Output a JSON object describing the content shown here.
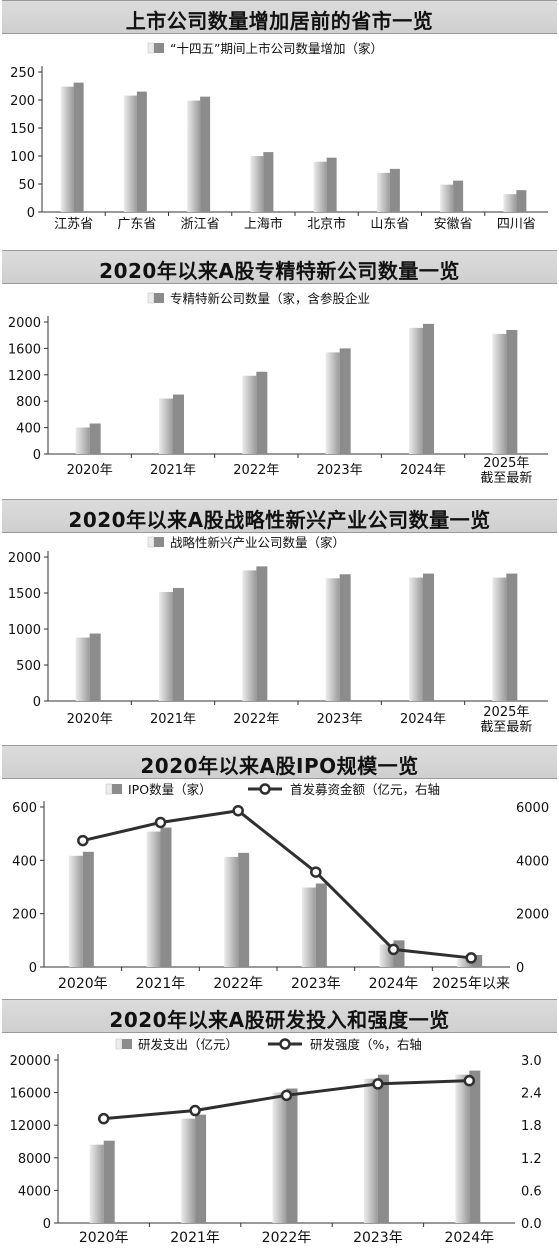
{
  "colors": {
    "bar_dark": "#8c8c8c",
    "bar_light": "#ececec",
    "line": "#2f2f2f",
    "title_bg": "#d6d6d6"
  },
  "chart_data": [
    {
      "type": "bar",
      "title": "上市公司数量增加居前的省市一览",
      "categories": [
        "江苏省",
        "广东省",
        "浙江省",
        "上海市",
        "北京市",
        "山东省",
        "安徽省",
        "四川省"
      ],
      "series": [
        {
          "name": "“十四五”期间上市公司数量增加（家）",
          "values": [
            231,
            215,
            206,
            107,
            97,
            77,
            56,
            39
          ]
        }
      ],
      "ylim": [
        0,
        250
      ],
      "yticks": [
        0,
        50,
        100,
        150,
        200,
        250
      ],
      "legend": "top-center"
    },
    {
      "type": "bar",
      "title": "2020年以来A股专精特新公司数量一览",
      "categories": [
        "2020年",
        "2021年",
        "2022年",
        "2023年",
        "2024年",
        "2025年\n截至最新"
      ],
      "series": [
        {
          "name": "专精特新公司数量（家，含参股企业",
          "values": [
            462,
            901,
            1246,
            1600,
            1972,
            1880
          ]
        }
      ],
      "ylim": [
        0,
        2000
      ],
      "yticks": [
        0,
        400,
        800,
        1200,
        1600,
        2000
      ],
      "legend": "top-center"
    },
    {
      "type": "bar",
      "title": "2020年以来A股战略性新兴产业公司数量一览",
      "categories": [
        "2020年",
        "2021年",
        "2022年",
        "2023年",
        "2024年",
        "2025年\n截至最新"
      ],
      "series": [
        {
          "name": "战略性新兴产业公司数量（家）",
          "values": [
            937,
            1570,
            1870,
            1760,
            1770,
            1770
          ]
        }
      ],
      "ylim": [
        0,
        2000
      ],
      "yticks": [
        0,
        500,
        1000,
        1500,
        2000
      ],
      "legend": "top-center"
    },
    {
      "type": "bar",
      "title": "2020年以来A股IPO规模一览",
      "categories": [
        "2020年",
        "2021年",
        "2022年",
        "2023年",
        "2024年",
        "2025年以来"
      ],
      "series": [
        {
          "name": "IPO数量（家）",
          "values": [
            432,
            523,
            428,
            313,
            100,
            45
          ],
          "axis": "left"
        },
        {
          "name": "首发募资金额（亿元，右轴",
          "values": [
            4740,
            5420,
            5860,
            3560,
            660,
            340
          ],
          "axis": "right",
          "kind": "line"
        }
      ],
      "ylim": [
        0,
        600
      ],
      "yticks": [
        0,
        200,
        400,
        600
      ],
      "y2lim": [
        0,
        6000
      ],
      "y2ticks": [
        0,
        2000,
        4000,
        6000
      ],
      "legend": "top-center"
    },
    {
      "type": "bar",
      "title": "2020年以来A股研发投入和强度一览",
      "categories": [
        "2020年",
        "2021年",
        "2022年",
        "2023年",
        "2024年"
      ],
      "series": [
        {
          "name": "研发支出（亿元）",
          "values": [
            10100,
            13300,
            16500,
            18200,
            18700
          ],
          "axis": "left"
        },
        {
          "name": "研发强度（%，右轴",
          "values": [
            1.92,
            2.07,
            2.35,
            2.56,
            2.62
          ],
          "axis": "right",
          "kind": "line"
        }
      ],
      "ylim": [
        0,
        20000
      ],
      "yticks": [
        0,
        4000,
        8000,
        12000,
        16000,
        20000
      ],
      "y2lim": [
        0,
        3.0
      ],
      "y2ticks": [
        "0.0",
        "0.6",
        "1.2",
        "1.8",
        "2.4",
        "3.0"
      ],
      "legend": "top-center"
    }
  ]
}
